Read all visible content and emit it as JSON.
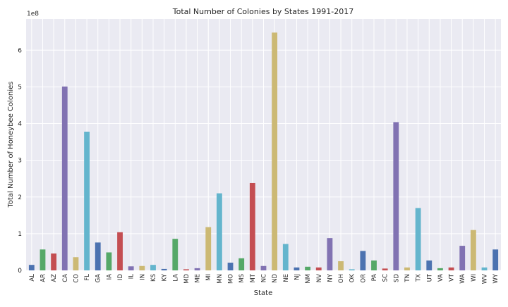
{
  "chart_data": {
    "type": "bar",
    "title": "Total Number of Colonies by States 1991-2017",
    "xlabel": "State",
    "ylabel": "Total Number of Honeybee Colonies",
    "exponent_label": "1e8",
    "ylim": [
      0,
      6.85
    ],
    "y_ticks": [
      "0",
      "1",
      "2",
      "3",
      "4",
      "5",
      "6"
    ],
    "grid": true,
    "legend": "none",
    "palette": [
      "#4c72b0",
      "#55a868",
      "#c44e52",
      "#8172b2",
      "#ccb974",
      "#64b5cd"
    ],
    "background": "#eaeaf2",
    "categories": [
      "AL",
      "AR",
      "AZ",
      "CA",
      "CO",
      "FL",
      "GA",
      "IA",
      "ID",
      "IL",
      "IN",
      "KS",
      "KY",
      "LA",
      "MD",
      "ME",
      "MI",
      "MN",
      "MO",
      "MS",
      "MT",
      "NC",
      "ND",
      "NE",
      "NJ",
      "NM",
      "NV",
      "NY",
      "OH",
      "OK",
      "OR",
      "PA",
      "SC",
      "SD",
      "TN",
      "TX",
      "UT",
      "VA",
      "VT",
      "WA",
      "WI",
      "WV",
      "WY"
    ],
    "values": [
      0.15,
      0.57,
      0.46,
      5.01,
      0.36,
      3.78,
      0.76,
      0.49,
      1.04,
      0.11,
      0.12,
      0.15,
      0.04,
      0.86,
      0.03,
      0.06,
      1.18,
      2.1,
      0.21,
      0.33,
      2.38,
      0.12,
      6.48,
      0.72,
      0.08,
      0.1,
      0.08,
      0.88,
      0.25,
      0.03,
      0.53,
      0.27,
      0.05,
      4.04,
      0.08,
      1.7,
      0.27,
      0.06,
      0.08,
      0.67,
      1.1,
      0.08,
      0.57
    ]
  }
}
